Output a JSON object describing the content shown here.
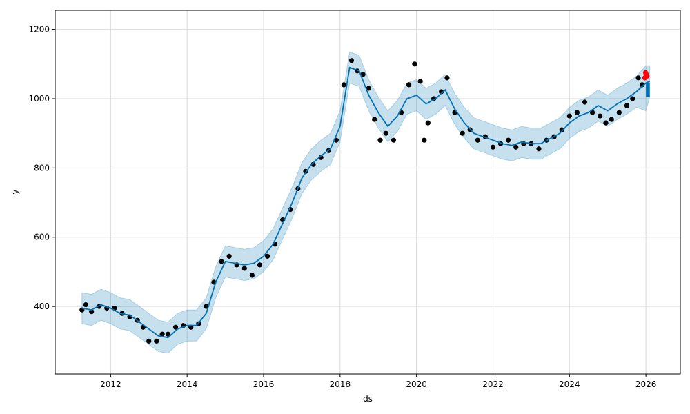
{
  "chart_data": {
    "type": "scatter",
    "xlabel": "ds",
    "ylabel": "y",
    "xlim": [
      2010.55,
      2026.9
    ],
    "ylim": [
      205,
      1255
    ],
    "x_ticks": [
      2012,
      2014,
      2016,
      2018,
      2020,
      2022,
      2024,
      2026
    ],
    "x_tick_labels": [
      "2012",
      "2014",
      "2016",
      "2018",
      "2020",
      "2022",
      "2024",
      "2026"
    ],
    "y_ticks": [
      400,
      600,
      800,
      1000,
      1200
    ],
    "y_tick_labels": [
      "400",
      "600",
      "800",
      "1000",
      "1200"
    ],
    "grid": true,
    "colors": {
      "observed": "#000000",
      "forecast_line": "#0072B2",
      "interval_fill": "#0072B2",
      "highlight": "#ff0000",
      "grid": "#d9d9d9"
    },
    "series": [
      {
        "role": "observed",
        "x": [
          2011.25,
          2011.35,
          2011.5,
          2011.7,
          2011.9,
          2012.1,
          2012.3,
          2012.5,
          2012.7,
          2012.85,
          2013.0,
          2013.2,
          2013.35,
          2013.5,
          2013.7,
          2013.9,
          2014.1,
          2014.3,
          2014.5,
          2014.7,
          2014.9,
          2015.1,
          2015.3,
          2015.5,
          2015.7,
          2015.9,
          2016.1,
          2016.3,
          2016.5,
          2016.7,
          2016.9,
          2017.1,
          2017.3,
          2017.5,
          2017.7,
          2017.9,
          2018.1,
          2018.3,
          2018.45,
          2018.6,
          2018.75,
          2018.9,
          2019.05,
          2019.2,
          2019.4,
          2019.6,
          2019.8,
          2019.95,
          2020.1,
          2020.2,
          2020.3,
          2020.45,
          2020.65,
          2020.8,
          2021.0,
          2021.2,
          2021.4,
          2021.6,
          2021.8,
          2022.0,
          2022.2,
          2022.4,
          2022.6,
          2022.8,
          2023.0,
          2023.2,
          2023.4,
          2023.6,
          2023.8,
          2024.0,
          2024.2,
          2024.4,
          2024.6,
          2024.8,
          2024.95,
          2025.1,
          2025.3,
          2025.5,
          2025.65,
          2025.8,
          2025.9
        ],
        "y": [
          390,
          405,
          385,
          400,
          395,
          395,
          380,
          370,
          360,
          340,
          300,
          300,
          320,
          320,
          340,
          345,
          340,
          350,
          400,
          470,
          530,
          545,
          520,
          510,
          490,
          520,
          545,
          580,
          650,
          680,
          740,
          790,
          810,
          830,
          850,
          880,
          1040,
          1110,
          1080,
          1070,
          1030,
          940,
          880,
          900,
          880,
          960,
          1040,
          1100,
          1050,
          880,
          930,
          1000,
          1020,
          1060,
          960,
          900,
          910,
          880,
          890,
          860,
          870,
          880,
          860,
          870,
          870,
          855,
          880,
          890,
          910,
          950,
          960,
          990,
          960,
          950,
          930,
          940,
          960,
          980,
          1000,
          1060,
          1040
        ]
      },
      {
        "role": "forecast",
        "x": [
          2011.25,
          2011.5,
          2011.75,
          2012.0,
          2012.25,
          2012.5,
          2012.75,
          2013.0,
          2013.25,
          2013.5,
          2013.75,
          2014.0,
          2014.25,
          2014.5,
          2014.75,
          2015.0,
          2015.25,
          2015.5,
          2015.75,
          2016.0,
          2016.25,
          2016.5,
          2016.75,
          2017.0,
          2017.25,
          2017.5,
          2017.75,
          2018.0,
          2018.25,
          2018.5,
          2018.75,
          2019.0,
          2019.25,
          2019.5,
          2019.75,
          2020.0,
          2020.25,
          2020.5,
          2020.75,
          2021.0,
          2021.25,
          2021.5,
          2021.75,
          2022.0,
          2022.25,
          2022.5,
          2022.75,
          2023.0,
          2023.25,
          2023.5,
          2023.75,
          2024.0,
          2024.25,
          2024.5,
          2024.75,
          2025.0,
          2025.25,
          2025.5,
          2025.75,
          2026.0,
          2026.1
        ],
        "y": [
          395,
          390,
          405,
          395,
          380,
          375,
          355,
          335,
          315,
          310,
          335,
          345,
          345,
          380,
          470,
          530,
          525,
          520,
          525,
          545,
          580,
          640,
          700,
          770,
          810,
          835,
          855,
          920,
          1090,
          1080,
          1010,
          960,
          920,
          950,
          1000,
          1010,
          985,
          1000,
          1025,
          970,
          930,
          900,
          890,
          880,
          870,
          865,
          875,
          870,
          870,
          885,
          900,
          930,
          950,
          960,
          980,
          965,
          985,
          1000,
          1020,
          1045,
          1050
        ]
      },
      {
        "role": "interval_upper",
        "x": [
          2011.25,
          2011.5,
          2011.75,
          2012.0,
          2012.25,
          2012.5,
          2012.75,
          2013.0,
          2013.25,
          2013.5,
          2013.75,
          2014.0,
          2014.25,
          2014.5,
          2014.75,
          2015.0,
          2015.25,
          2015.5,
          2015.75,
          2016.0,
          2016.25,
          2016.5,
          2016.75,
          2017.0,
          2017.25,
          2017.5,
          2017.75,
          2018.0,
          2018.25,
          2018.5,
          2018.75,
          2019.0,
          2019.25,
          2019.5,
          2019.75,
          2020.0,
          2020.25,
          2020.5,
          2020.75,
          2021.0,
          2021.25,
          2021.5,
          2021.75,
          2022.0,
          2022.25,
          2022.5,
          2022.75,
          2023.0,
          2023.25,
          2023.5,
          2023.75,
          2024.0,
          2024.25,
          2024.5,
          2024.75,
          2025.0,
          2025.25,
          2025.5,
          2025.75,
          2026.0,
          2026.1
        ],
        "y": [
          440,
          435,
          450,
          440,
          425,
          420,
          400,
          380,
          360,
          355,
          380,
          390,
          390,
          425,
          515,
          575,
          570,
          565,
          570,
          590,
          625,
          685,
          745,
          815,
          855,
          880,
          900,
          965,
          1135,
          1125,
          1055,
          1005,
          965,
          995,
          1045,
          1055,
          1030,
          1045,
          1070,
          1015,
          975,
          945,
          935,
          925,
          915,
          910,
          920,
          915,
          915,
          930,
          945,
          975,
          995,
          1005,
          1025,
          1010,
          1030,
          1045,
          1065,
          1095,
          1095
        ]
      },
      {
        "role": "interval_lower",
        "x": [
          2011.25,
          2011.5,
          2011.75,
          2012.0,
          2012.25,
          2012.5,
          2012.75,
          2013.0,
          2013.25,
          2013.5,
          2013.75,
          2014.0,
          2014.25,
          2014.5,
          2014.75,
          2015.0,
          2015.25,
          2015.5,
          2015.75,
          2016.0,
          2016.25,
          2016.5,
          2016.75,
          2017.0,
          2017.25,
          2017.5,
          2017.75,
          2018.0,
          2018.25,
          2018.5,
          2018.75,
          2019.0,
          2019.25,
          2019.5,
          2019.75,
          2020.0,
          2020.25,
          2020.5,
          2020.75,
          2021.0,
          2021.25,
          2021.5,
          2021.75,
          2022.0,
          2022.25,
          2022.5,
          2022.75,
          2023.0,
          2023.25,
          2023.5,
          2023.75,
          2024.0,
          2024.25,
          2024.5,
          2024.75,
          2025.0,
          2025.25,
          2025.5,
          2025.75,
          2026.0,
          2026.1
        ],
        "y": [
          350,
          345,
          360,
          350,
          335,
          330,
          310,
          290,
          270,
          265,
          290,
          300,
          300,
          335,
          425,
          485,
          480,
          475,
          480,
          500,
          535,
          595,
          655,
          725,
          765,
          790,
          810,
          875,
          1045,
          1035,
          965,
          915,
          875,
          905,
          955,
          965,
          940,
          955,
          980,
          925,
          885,
          855,
          845,
          835,
          825,
          820,
          830,
          825,
          825,
          840,
          855,
          885,
          905,
          915,
          935,
          920,
          940,
          955,
          975,
          965,
          1005
        ]
      },
      {
        "role": "highlight",
        "x": [
          2025.97,
          2025.99,
          2026.01,
          2026.03
        ],
        "y": [
          1060,
          1075,
          1070,
          1065
        ]
      }
    ]
  }
}
